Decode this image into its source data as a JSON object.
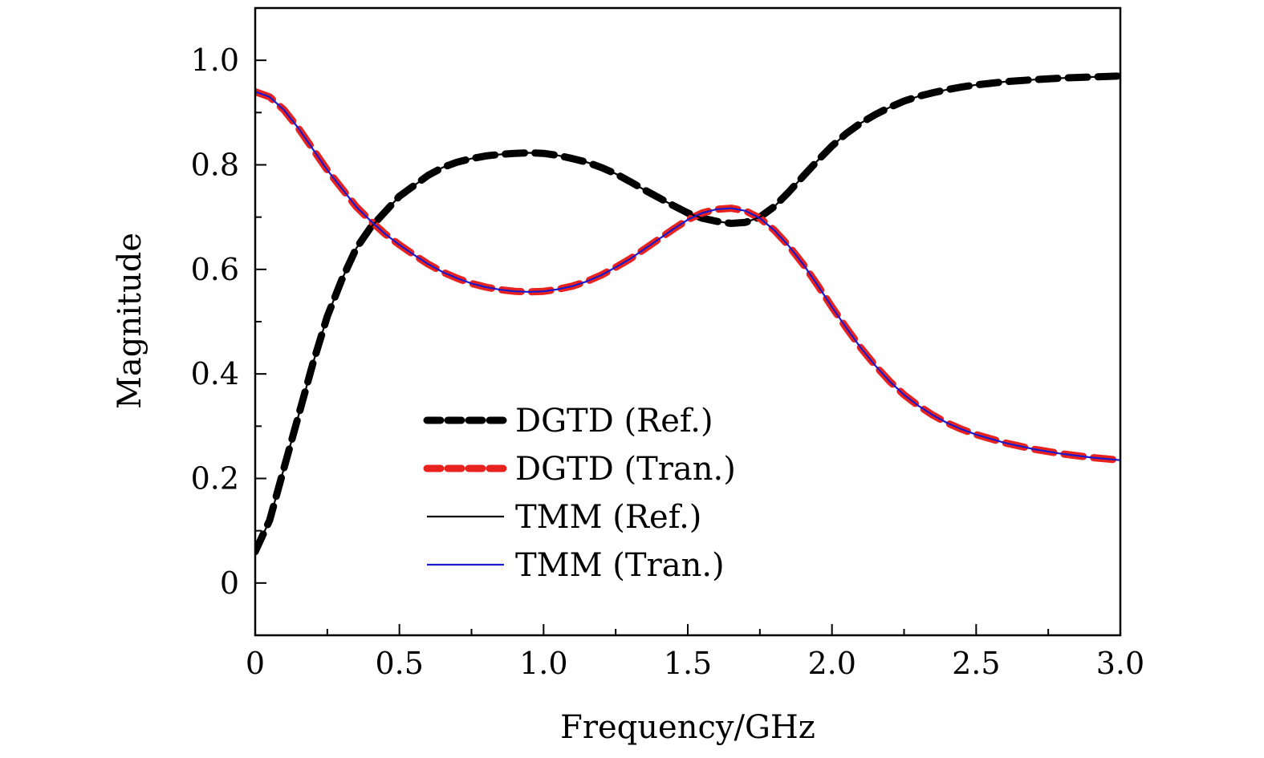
{
  "chart_data": {
    "type": "line",
    "xlabel": "Frequency/GHz",
    "ylabel": "Magnitude",
    "xlim": [
      0,
      3.0
    ],
    "ylim": [
      -0.1,
      1.1
    ],
    "xticks": [
      {
        "value": 0,
        "label": "0"
      },
      {
        "value": 0.5,
        "label": "0.5"
      },
      {
        "value": 1.0,
        "label": "1.0"
      },
      {
        "value": 1.5,
        "label": "1.5"
      },
      {
        "value": 2.0,
        "label": "2.0"
      },
      {
        "value": 2.5,
        "label": "2.5"
      },
      {
        "value": 3.0,
        "label": "3.0"
      }
    ],
    "yticks": [
      {
        "value": 0,
        "label": "0"
      },
      {
        "value": 0.2,
        "label": "0.2"
      },
      {
        "value": 0.4,
        "label": "0.4"
      },
      {
        "value": 0.6,
        "label": "0.6"
      },
      {
        "value": 0.8,
        "label": "0.8"
      },
      {
        "value": 1.0,
        "label": "1.0"
      }
    ],
    "grid": false,
    "legend_position": "center",
    "series": [
      {
        "name": "DGTD (Ref.)",
        "color": "#000000",
        "style": "dashed-thick",
        "x": [
          0,
          0.05,
          0.1,
          0.15,
          0.2,
          0.25,
          0.3,
          0.35,
          0.4,
          0.45,
          0.5,
          0.55,
          0.6,
          0.65,
          0.7,
          0.75,
          0.8,
          0.85,
          0.9,
          0.95,
          1.0,
          1.05,
          1.1,
          1.15,
          1.2,
          1.25,
          1.3,
          1.35,
          1.4,
          1.45,
          1.5,
          1.55,
          1.6,
          1.65,
          1.7,
          1.75,
          1.8,
          1.85,
          1.9,
          1.95,
          2.0,
          2.05,
          2.1,
          2.15,
          2.2,
          2.25,
          2.3,
          2.35,
          2.4,
          2.45,
          2.5,
          2.6,
          2.7,
          2.8,
          2.9,
          3.0
        ],
        "y": [
          0.06,
          0.12,
          0.22,
          0.32,
          0.42,
          0.51,
          0.58,
          0.64,
          0.68,
          0.71,
          0.74,
          0.76,
          0.78,
          0.795,
          0.805,
          0.812,
          0.817,
          0.82,
          0.822,
          0.823,
          0.822,
          0.818,
          0.812,
          0.805,
          0.795,
          0.783,
          0.768,
          0.752,
          0.737,
          0.722,
          0.708,
          0.698,
          0.692,
          0.688,
          0.69,
          0.7,
          0.72,
          0.748,
          0.778,
          0.808,
          0.836,
          0.86,
          0.88,
          0.896,
          0.91,
          0.922,
          0.931,
          0.938,
          0.944,
          0.949,
          0.953,
          0.959,
          0.963,
          0.966,
          0.968,
          0.97
        ]
      },
      {
        "name": "DGTD (Tran.)",
        "color": "#e8231f",
        "style": "dashed-thick",
        "x": [
          0,
          0.05,
          0.1,
          0.15,
          0.2,
          0.25,
          0.3,
          0.35,
          0.4,
          0.45,
          0.5,
          0.55,
          0.6,
          0.65,
          0.7,
          0.75,
          0.8,
          0.85,
          0.9,
          0.95,
          1.0,
          1.05,
          1.1,
          1.15,
          1.2,
          1.25,
          1.3,
          1.35,
          1.4,
          1.45,
          1.5,
          1.55,
          1.6,
          1.65,
          1.7,
          1.75,
          1.8,
          1.85,
          1.9,
          1.95,
          2.0,
          2.05,
          2.1,
          2.15,
          2.2,
          2.25,
          2.3,
          2.35,
          2.4,
          2.45,
          2.5,
          2.6,
          2.7,
          2.8,
          2.9,
          3.0
        ],
        "y": [
          0.94,
          0.93,
          0.905,
          0.87,
          0.83,
          0.79,
          0.755,
          0.72,
          0.693,
          0.668,
          0.647,
          0.628,
          0.61,
          0.595,
          0.583,
          0.573,
          0.566,
          0.561,
          0.558,
          0.557,
          0.558,
          0.562,
          0.568,
          0.577,
          0.589,
          0.604,
          0.62,
          0.639,
          0.658,
          0.677,
          0.695,
          0.708,
          0.715,
          0.717,
          0.712,
          0.698,
          0.675,
          0.645,
          0.61,
          0.57,
          0.528,
          0.488,
          0.45,
          0.416,
          0.386,
          0.36,
          0.339,
          0.321,
          0.306,
          0.294,
          0.284,
          0.268,
          0.256,
          0.247,
          0.24,
          0.235
        ]
      },
      {
        "name": "TMM (Ref.)",
        "color": "#000000",
        "style": "solid-thin",
        "x": [
          0,
          0.05,
          0.1,
          0.15,
          0.2,
          0.25,
          0.3,
          0.35,
          0.4,
          0.45,
          0.5,
          0.55,
          0.6,
          0.65,
          0.7,
          0.75,
          0.8,
          0.85,
          0.9,
          0.95,
          1.0,
          1.05,
          1.1,
          1.15,
          1.2,
          1.25,
          1.3,
          1.35,
          1.4,
          1.45,
          1.5,
          1.55,
          1.6,
          1.65,
          1.7,
          1.75,
          1.8,
          1.85,
          1.9,
          1.95,
          2.0,
          2.05,
          2.1,
          2.15,
          2.2,
          2.25,
          2.3,
          2.35,
          2.4,
          2.45,
          2.5,
          2.6,
          2.7,
          2.8,
          2.9,
          3.0
        ],
        "y": [
          0.06,
          0.12,
          0.22,
          0.32,
          0.42,
          0.51,
          0.58,
          0.64,
          0.68,
          0.71,
          0.74,
          0.76,
          0.78,
          0.795,
          0.805,
          0.812,
          0.817,
          0.82,
          0.822,
          0.823,
          0.822,
          0.818,
          0.812,
          0.805,
          0.795,
          0.783,
          0.768,
          0.752,
          0.737,
          0.722,
          0.708,
          0.698,
          0.692,
          0.688,
          0.69,
          0.7,
          0.72,
          0.748,
          0.778,
          0.808,
          0.836,
          0.86,
          0.88,
          0.896,
          0.91,
          0.922,
          0.931,
          0.938,
          0.944,
          0.949,
          0.953,
          0.959,
          0.963,
          0.966,
          0.968,
          0.97
        ]
      },
      {
        "name": "TMM (Tran.)",
        "color": "#1a1acc",
        "style": "solid-thin",
        "x": [
          0,
          0.05,
          0.1,
          0.15,
          0.2,
          0.25,
          0.3,
          0.35,
          0.4,
          0.45,
          0.5,
          0.55,
          0.6,
          0.65,
          0.7,
          0.75,
          0.8,
          0.85,
          0.9,
          0.95,
          1.0,
          1.05,
          1.1,
          1.15,
          1.2,
          1.25,
          1.3,
          1.35,
          1.4,
          1.45,
          1.5,
          1.55,
          1.6,
          1.65,
          1.7,
          1.75,
          1.8,
          1.85,
          1.9,
          1.95,
          2.0,
          2.05,
          2.1,
          2.15,
          2.2,
          2.25,
          2.3,
          2.35,
          2.4,
          2.45,
          2.5,
          2.6,
          2.7,
          2.8,
          2.9,
          3.0
        ],
        "y": [
          0.94,
          0.93,
          0.905,
          0.87,
          0.83,
          0.79,
          0.755,
          0.72,
          0.693,
          0.668,
          0.647,
          0.628,
          0.61,
          0.595,
          0.583,
          0.573,
          0.566,
          0.561,
          0.558,
          0.557,
          0.558,
          0.562,
          0.568,
          0.577,
          0.589,
          0.604,
          0.62,
          0.639,
          0.658,
          0.677,
          0.695,
          0.708,
          0.715,
          0.717,
          0.712,
          0.698,
          0.675,
          0.645,
          0.61,
          0.57,
          0.528,
          0.488,
          0.45,
          0.416,
          0.386,
          0.36,
          0.339,
          0.321,
          0.306,
          0.294,
          0.284,
          0.268,
          0.256,
          0.247,
          0.24,
          0.235
        ]
      }
    ]
  }
}
